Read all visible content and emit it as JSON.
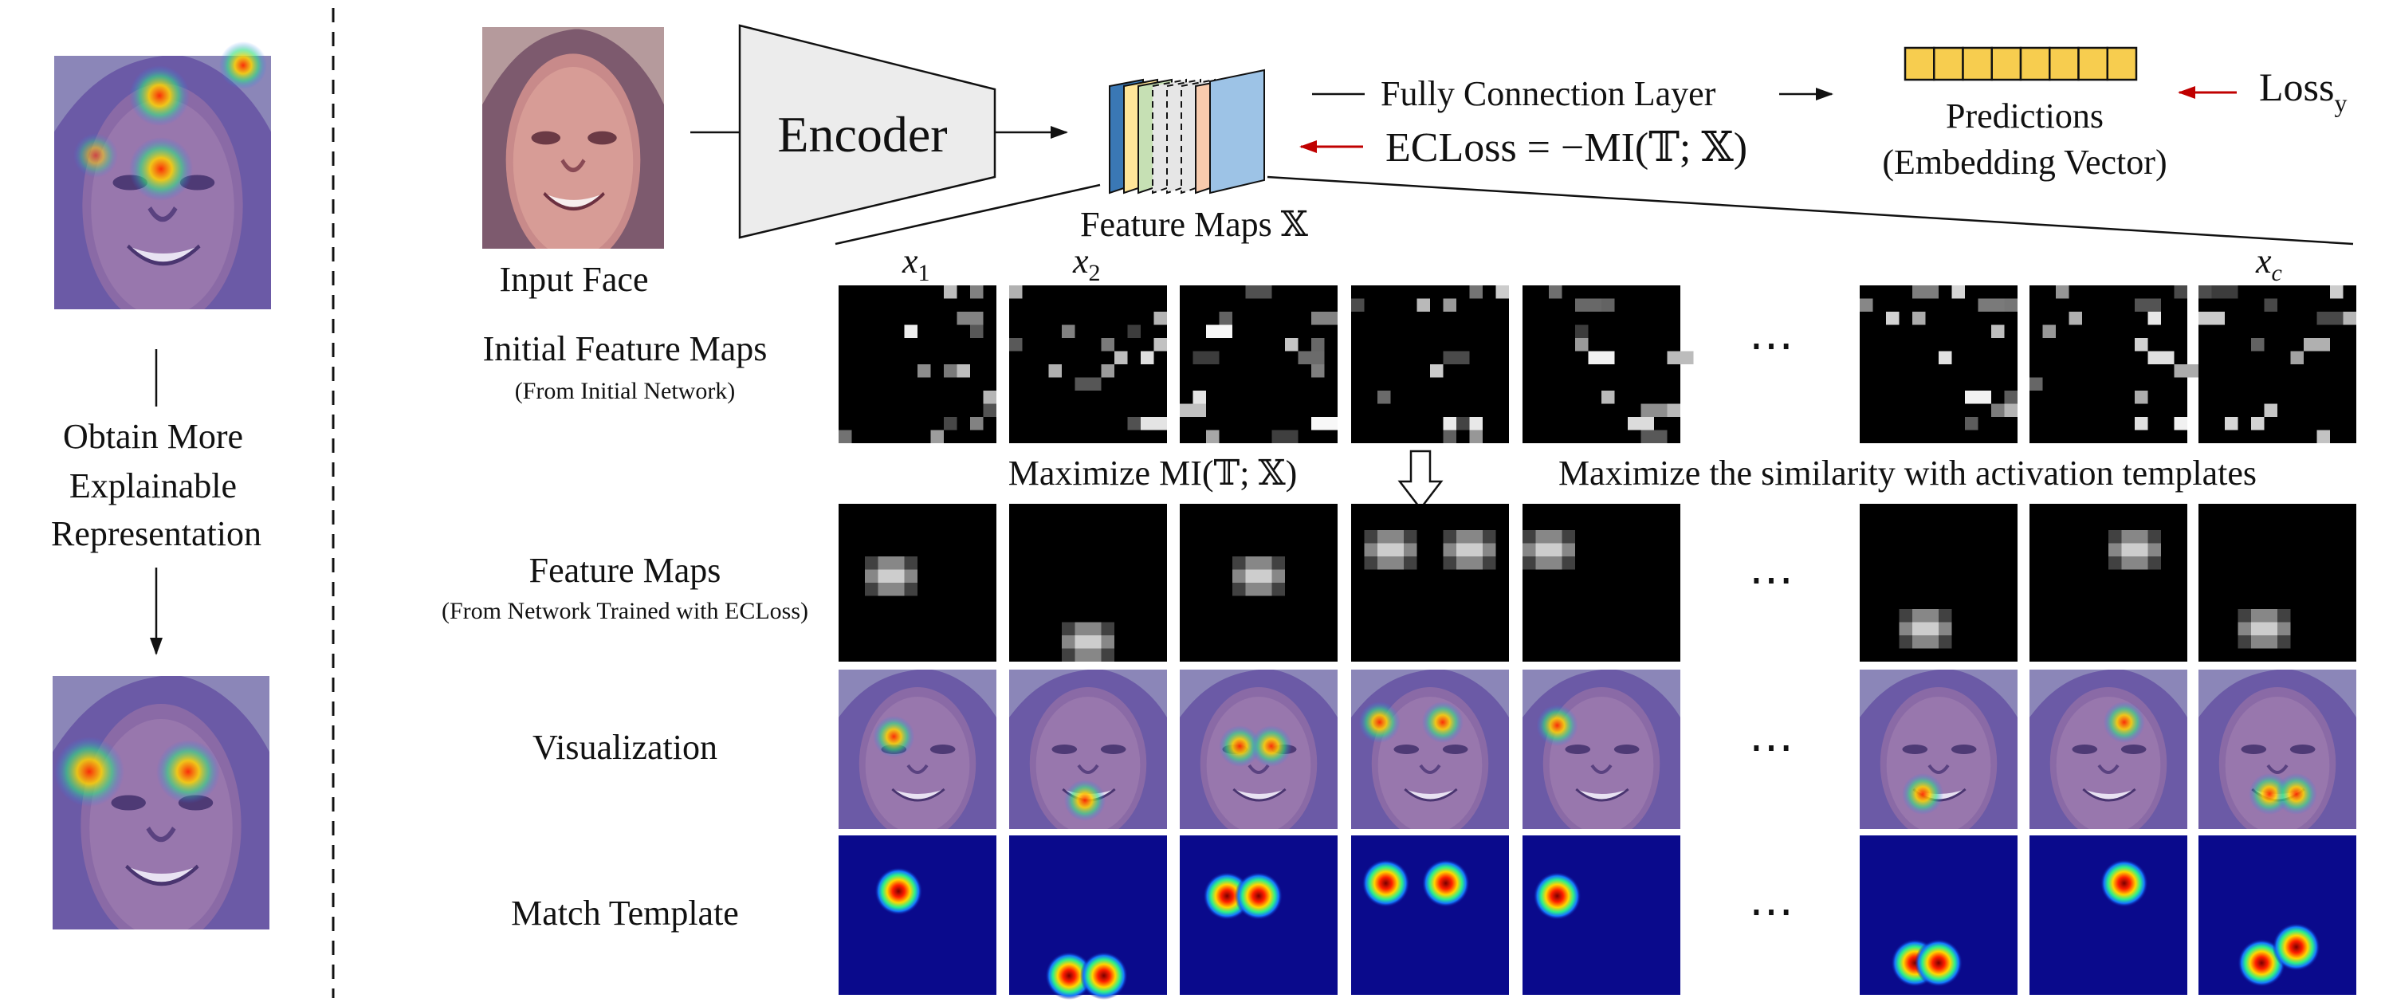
{
  "left_panel": {
    "caption_lines": [
      "Obtain More",
      "Explainable",
      "Representation"
    ]
  },
  "pipeline": {
    "input_label": "Input Face",
    "encoder_label": "Encoder",
    "feature_maps_label": "Feature Maps 𝕏",
    "fc_label": "Fully Connection Layer",
    "ecloss_label": "ECLoss = −MI(𝕋; 𝕏)",
    "predictions_line1": "Predictions",
    "predictions_line2": "(Embedding Vector)",
    "loss_label": "Loss",
    "loss_subscript": "y",
    "embedding_cells": 8
  },
  "columns": {
    "x1": "x",
    "x1_sub": "1",
    "x2": "x",
    "x2_sub": "2",
    "xc": "x",
    "xc_sub": "c",
    "ellipsis": "⋯"
  },
  "rows": {
    "initial_title": "Initial Feature Maps",
    "initial_sub": "(From Initial Network)",
    "mid_left": "Maximize MI(𝕋; 𝕏)",
    "mid_right": "Maximize the similarity with activation templates",
    "trained_title": "Feature Maps",
    "trained_sub": "(From Network Trained with ECLoss)",
    "visualization_title": "Visualization",
    "template_title": "Match Template"
  },
  "colors": {
    "arrow_red": "#c00000",
    "embedding_fill": "#f7cd4f",
    "template_bg": "#0a0a8c",
    "face_tint": "#6e5ea8",
    "encoder_fill": "#ececec",
    "fmap_blue": "#3a78b5",
    "fmap_yellow": "#ffe699",
    "fmap_green": "#c6e0b4",
    "fmap_pink": "#f8cbad",
    "fmap_lightblue": "#9dc3e6"
  }
}
